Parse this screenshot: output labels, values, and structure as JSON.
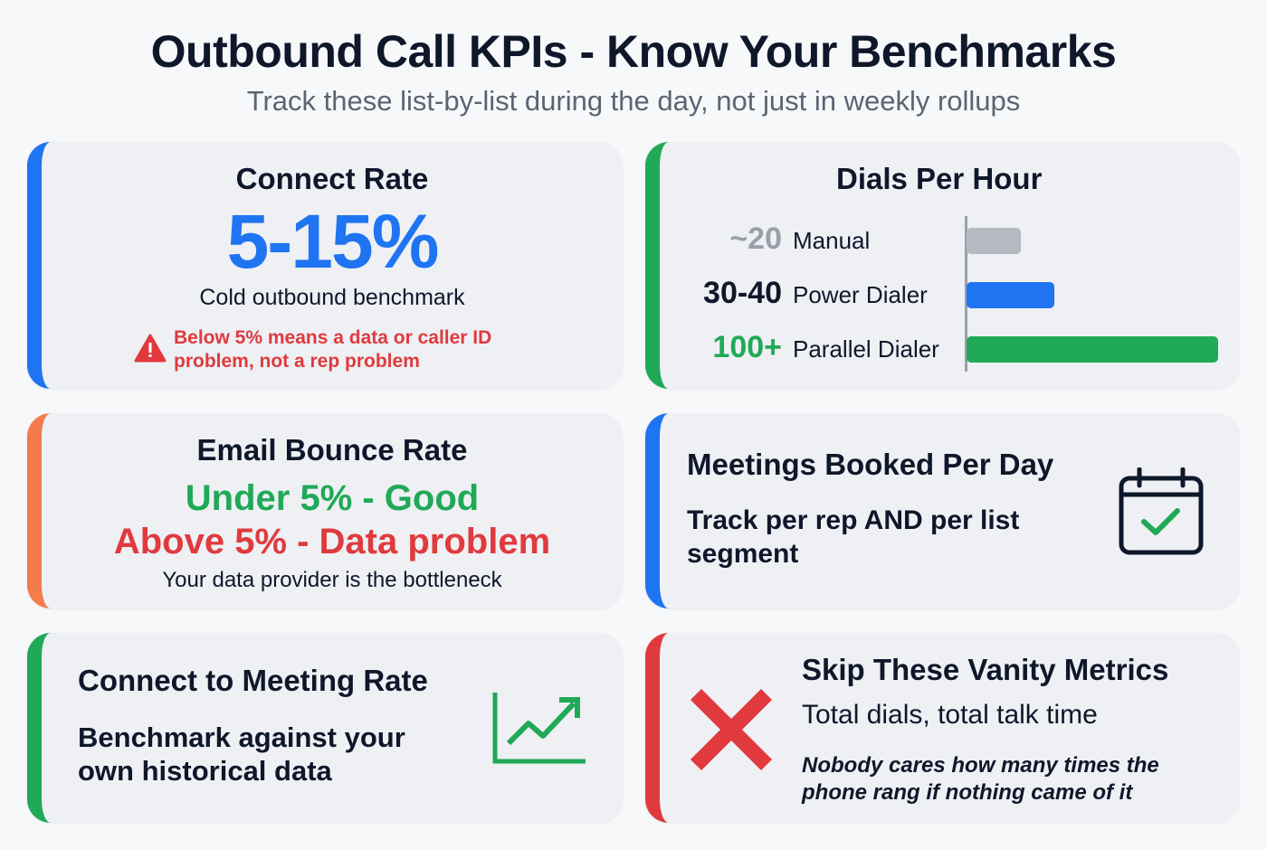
{
  "header": {
    "title": "Outbound Call KPIs - Know Your Benchmarks",
    "subtitle": "Track these list-by-list during the day, not just in weekly rollups"
  },
  "connect_rate": {
    "title": "Connect Rate",
    "value": "5-15%",
    "caption": "Cold outbound benchmark",
    "warning_line1": "Below 5% means a data or caller ID",
    "warning_line2": "problem, not a rep problem"
  },
  "dials_per_hour": {
    "title": "Dials Per Hour",
    "rows": [
      {
        "value": "~20",
        "label": "Manual",
        "amount": 20,
        "color": "#b4b9c2",
        "num_color": "#9aa0aa"
      },
      {
        "value": "30-40",
        "label": "Power Dialer",
        "amount": 35,
        "color": "#1f74f2",
        "num_color": "#0f172a"
      },
      {
        "value": "100+",
        "label": "Parallel Dialer",
        "amount": 100,
        "color": "#20a957",
        "num_color": "#20a957"
      }
    ]
  },
  "email_bounce": {
    "title": "Email Bounce Rate",
    "good": "Under 5% - Good",
    "bad": "Above 5% - Data problem",
    "caption": "Your data provider is the bottleneck"
  },
  "meetings": {
    "title": "Meetings Booked Per Day",
    "text_line1": "Track per rep AND per list",
    "text_line2": "segment"
  },
  "connect_meeting": {
    "title": "Connect to Meeting Rate",
    "text_line1": "Benchmark against your",
    "text_line2": "own historical data"
  },
  "vanity": {
    "title": "Skip These Vanity Metrics",
    "text": "Total dials, total talk time",
    "note_line1": "Nobody cares how many times the",
    "note_line2": "phone rang if nothing came of it"
  }
}
